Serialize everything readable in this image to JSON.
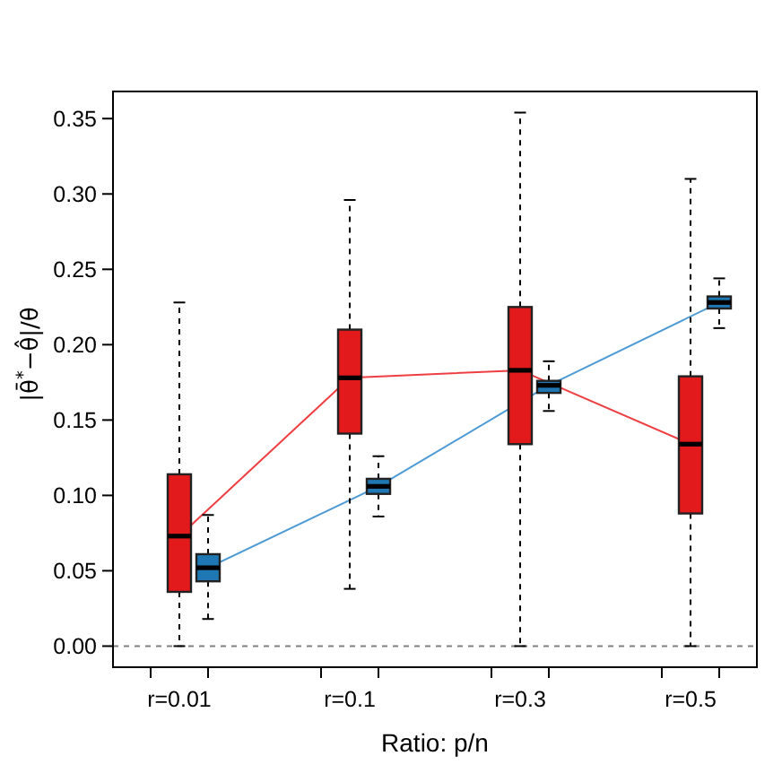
{
  "chart_data": {
    "type": "box",
    "xlabel": "Ratio: p/n",
    "ylabel": "|θ̄$^{*}$−θ̂|/θ",
    "categories": [
      "r=0.01",
      "r=0.1",
      "r=0.3",
      "r=0.5"
    ],
    "ylim": [
      -0.014,
      0.368
    ],
    "yticks": [
      {
        "value": 0,
        "label": "0.00"
      },
      {
        "value": 0.05,
        "label": "0.05"
      },
      {
        "value": 0.1,
        "label": "0.10"
      },
      {
        "value": 0.15,
        "label": "0.15"
      },
      {
        "value": 0.2,
        "label": "0.20"
      },
      {
        "value": 0.25,
        "label": "0.25"
      },
      {
        "value": 0.3,
        "label": "0.30"
      },
      {
        "value": 0.35,
        "label": "0.35"
      }
    ],
    "series": [
      {
        "color": "#e31a1c",
        "boxes": [
          {
            "low": 0,
            "q1": 0.036,
            "median": 0.073,
            "q3": 0.114,
            "high": 0.228
          },
          {
            "low": 0.038,
            "q1": 0.141,
            "median": 0.178,
            "q3": 0.21,
            "high": 0.296
          },
          {
            "low": 0,
            "q1": 0.134,
            "median": 0.183,
            "q3": 0.225,
            "high": 0.354
          },
          {
            "low": 0,
            "q1": 0.088,
            "median": 0.134,
            "q3": 0.179,
            "high": 0.31
          }
        ]
      },
      {
        "color": "#1f78b4",
        "boxes": [
          {
            "low": 0.018,
            "q1": 0.043,
            "median": 0.052,
            "q3": 0.061,
            "high": 0.087
          },
          {
            "low": 0.086,
            "q1": 0.101,
            "median": 0.106,
            "q3": 0.111,
            "high": 0.126
          },
          {
            "low": 0.156,
            "q1": 0.168,
            "median": 0.173,
            "q3": 0.176,
            "high": 0.189
          },
          {
            "low": 0.211,
            "q1": 0.224,
            "median": 0.228,
            "q3": 0.232,
            "high": 0.244
          }
        ]
      },
      {
        "type": "line",
        "color": "#ef3e42",
        "values": [
          0.073,
          0.178,
          0.183,
          0.134
        ]
      },
      {
        "type": "line",
        "color": "#4d9ad4",
        "values": [
          0.052,
          0.106,
          0.173,
          0.228
        ]
      }
    ],
    "ref_lines": [
      {
        "axis": "y",
        "value": 0,
        "color": "#808080",
        "line_style": "dashed"
      }
    ]
  }
}
